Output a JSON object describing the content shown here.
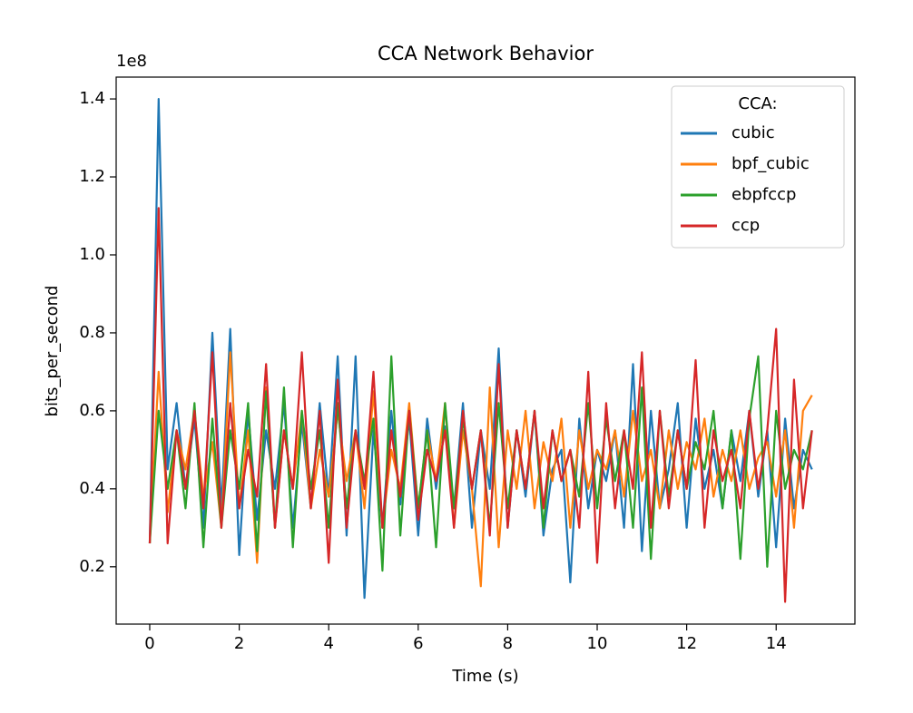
{
  "chart_data": {
    "type": "line",
    "title": "CCA Network Behavior",
    "xlabel": "Time (s)",
    "ylabel": "bits_per_second",
    "y_offset": "1e8",
    "legend_title": "CCA:",
    "legend": "upper right",
    "x": [
      0,
      0.2,
      0.4,
      0.6,
      0.8,
      1,
      1.2,
      1.4,
      1.6,
      1.8,
      2,
      2.2,
      2.4,
      2.6,
      2.8,
      3,
      3.2,
      3.4,
      3.6,
      3.8,
      4,
      4.2,
      4.4,
      4.6,
      4.8,
      5,
      5.2,
      5.4,
      5.6,
      5.8,
      6,
      6.2,
      6.4,
      6.6,
      6.8,
      7,
      7.2,
      7.4,
      7.6,
      7.8,
      8,
      8.2,
      8.4,
      8.6,
      8.8,
      9,
      9.2,
      9.4,
      9.6,
      9.8,
      10,
      10.2,
      10.4,
      10.6,
      10.8,
      11,
      11.2,
      11.4,
      11.6,
      11.8,
      12,
      12.2,
      12.4,
      12.6,
      12.8,
      13,
      13.2,
      13.4,
      13.6,
      13.8,
      14,
      14.2,
      14.4,
      14.6,
      14.8
    ],
    "series": [
      {
        "name": "cubic",
        "color": "#1f77b4",
        "values": [
          0.26,
          1.4,
          0.45,
          0.62,
          0.4,
          0.58,
          0.3,
          0.8,
          0.35,
          0.81,
          0.23,
          0.6,
          0.32,
          0.55,
          0.4,
          0.62,
          0.3,
          0.57,
          0.35,
          0.62,
          0.38,
          0.74,
          0.28,
          0.74,
          0.12,
          0.55,
          0.3,
          0.6,
          0.36,
          0.58,
          0.28,
          0.58,
          0.4,
          0.56,
          0.35,
          0.62,
          0.3,
          0.55,
          0.4,
          0.76,
          0.3,
          0.55,
          0.38,
          0.6,
          0.28,
          0.45,
          0.5,
          0.16,
          0.58,
          0.35,
          0.5,
          0.42,
          0.55,
          0.3,
          0.72,
          0.24,
          0.6,
          0.35,
          0.45,
          0.62,
          0.3,
          0.58,
          0.4,
          0.5,
          0.35,
          0.55,
          0.42,
          0.6,
          0.38,
          0.55,
          0.25,
          0.58,
          0.35,
          0.5,
          0.45
        ]
      },
      {
        "name": "bpf_cubic",
        "color": "#ff7f0e",
        "values": [
          0.26,
          0.7,
          0.34,
          0.55,
          0.45,
          0.6,
          0.38,
          0.52,
          0.3,
          0.75,
          0.35,
          0.55,
          0.21,
          0.66,
          0.3,
          0.55,
          0.4,
          0.6,
          0.35,
          0.5,
          0.38,
          0.6,
          0.42,
          0.55,
          0.35,
          0.65,
          0.3,
          0.5,
          0.4,
          0.62,
          0.35,
          0.55,
          0.42,
          0.62,
          0.3,
          0.55,
          0.4,
          0.15,
          0.66,
          0.25,
          0.55,
          0.4,
          0.6,
          0.35,
          0.52,
          0.42,
          0.58,
          0.3,
          0.55,
          0.4,
          0.5,
          0.45,
          0.55,
          0.38,
          0.6,
          0.42,
          0.5,
          0.35,
          0.55,
          0.4,
          0.52,
          0.45,
          0.58,
          0.38,
          0.5,
          0.42,
          0.55,
          0.4,
          0.48,
          0.52,
          0.38,
          0.55,
          0.3,
          0.6,
          0.64
        ]
      },
      {
        "name": "ebpfccp",
        "color": "#2ca02c",
        "values": [
          0.26,
          0.6,
          0.4,
          0.55,
          0.35,
          0.62,
          0.25,
          0.58,
          0.3,
          0.55,
          0.4,
          0.62,
          0.24,
          0.65,
          0.3,
          0.66,
          0.25,
          0.6,
          0.4,
          0.55,
          0.3,
          0.62,
          0.35,
          0.55,
          0.42,
          0.58,
          0.19,
          0.74,
          0.28,
          0.6,
          0.35,
          0.55,
          0.25,
          0.62,
          0.35,
          0.58,
          0.4,
          0.55,
          0.3,
          0.62,
          0.35,
          0.55,
          0.4,
          0.6,
          0.3,
          0.55,
          0.42,
          0.5,
          0.38,
          0.62,
          0.35,
          0.58,
          0.42,
          0.55,
          0.3,
          0.66,
          0.22,
          0.6,
          0.38,
          0.55,
          0.4,
          0.52,
          0.45,
          0.6,
          0.35,
          0.55,
          0.22,
          0.58,
          0.74,
          0.2,
          0.6,
          0.4,
          0.5,
          0.45,
          0.55
        ]
      },
      {
        "name": "ccp",
        "color": "#d62728",
        "values": [
          0.26,
          1.12,
          0.26,
          0.55,
          0.4,
          0.6,
          0.35,
          0.75,
          0.3,
          0.62,
          0.35,
          0.5,
          0.38,
          0.72,
          0.3,
          0.55,
          0.4,
          0.75,
          0.35,
          0.6,
          0.21,
          0.68,
          0.3,
          0.55,
          0.4,
          0.7,
          0.3,
          0.55,
          0.38,
          0.6,
          0.32,
          0.5,
          0.42,
          0.55,
          0.3,
          0.6,
          0.4,
          0.55,
          0.28,
          0.72,
          0.3,
          0.55,
          0.4,
          0.6,
          0.35,
          0.55,
          0.42,
          0.5,
          0.3,
          0.7,
          0.21,
          0.62,
          0.35,
          0.55,
          0.4,
          0.75,
          0.3,
          0.6,
          0.35,
          0.55,
          0.4,
          0.73,
          0.3,
          0.55,
          0.42,
          0.5,
          0.35,
          0.6,
          0.4,
          0.55,
          0.81,
          0.11,
          0.68,
          0.35,
          0.55
        ]
      }
    ],
    "xlim": [
      -0.75,
      15.76
    ],
    "xticks": [
      0,
      2,
      4,
      6,
      8,
      10,
      12,
      14
    ],
    "ylim": [
      0.053,
      1.456
    ],
    "yticks": [
      0.2,
      0.4,
      0.6,
      0.8,
      {
        "value": 1,
        "label": "1.0"
      },
      1.2,
      1.4
    ]
  }
}
